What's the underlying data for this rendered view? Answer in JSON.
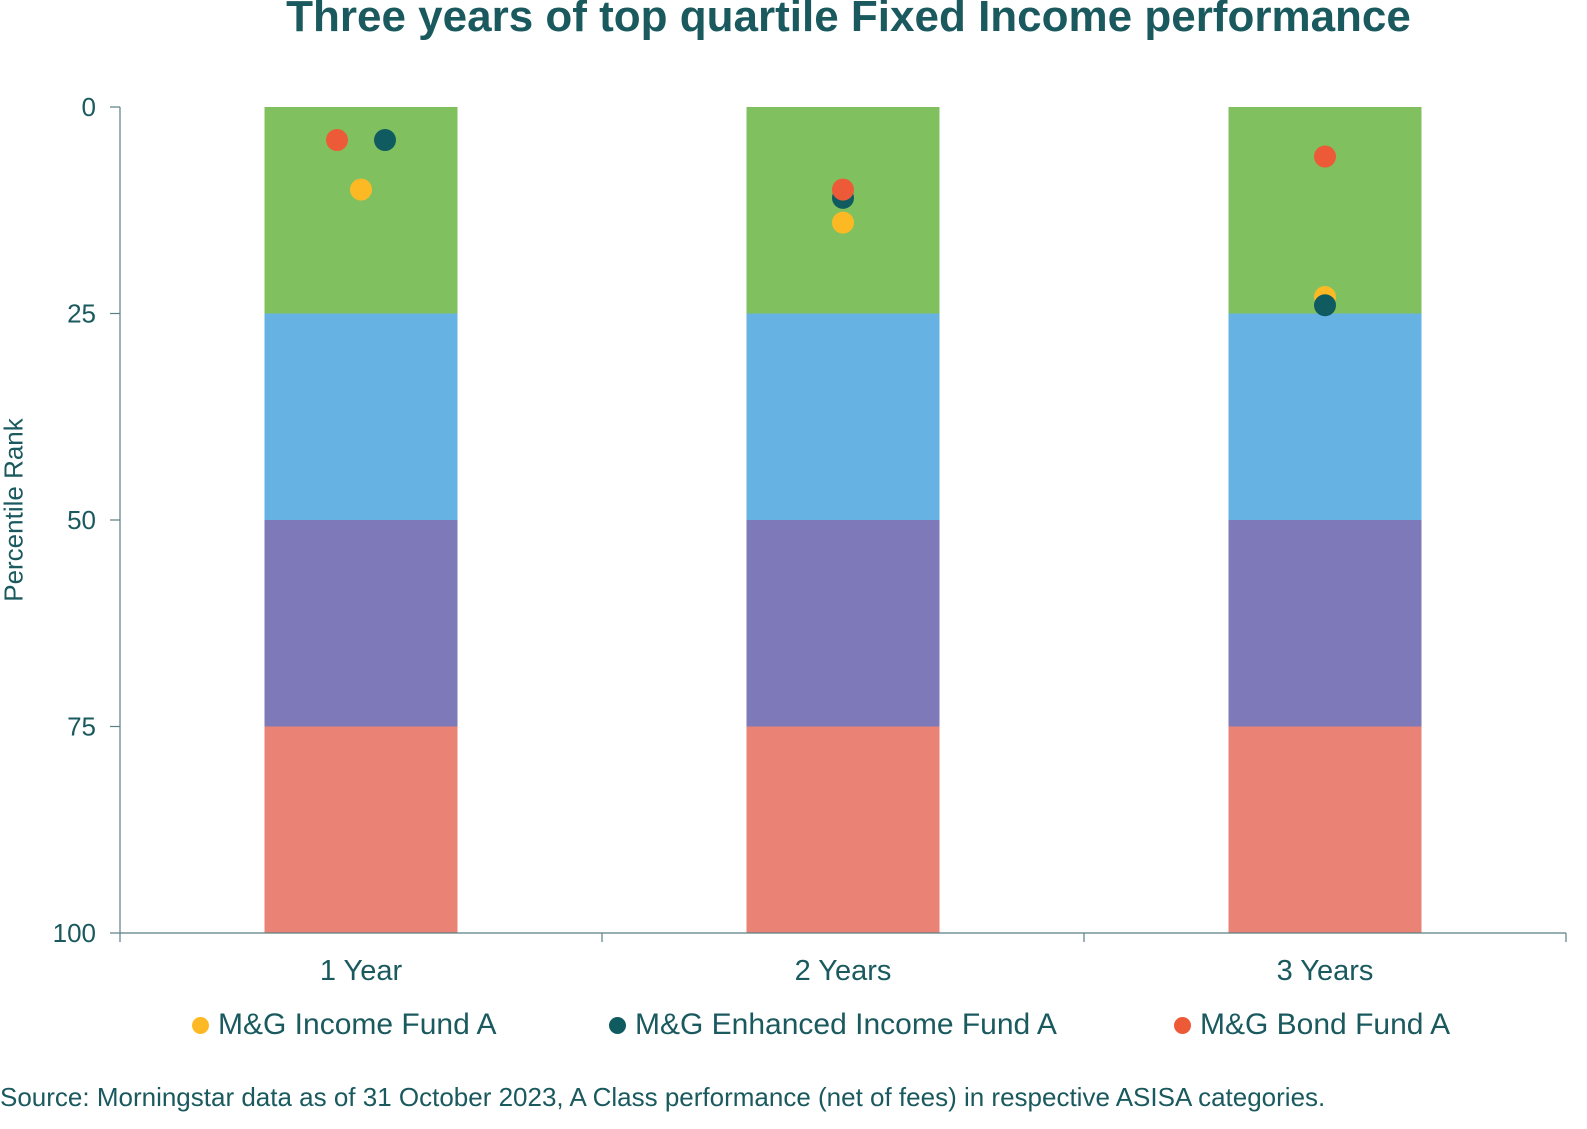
{
  "chart_data": {
    "type": "bar",
    "title": "Three years of top quartile Fixed Income performance",
    "ylabel": "Percentile Rank",
    "xlabel": "",
    "ylim": [
      0,
      100
    ],
    "y_inverted": true,
    "y_ticks": [
      "0",
      "25",
      "50",
      "75",
      "100"
    ],
    "categories": [
      "1 Year",
      "2 Years",
      "3 Years"
    ],
    "quartile_bands": [
      {
        "from": 0,
        "to": 25,
        "color": "#80c05f"
      },
      {
        "from": 25,
        "to": 50,
        "color": "#66b3e3"
      },
      {
        "from": 50,
        "to": 75,
        "color": "#7e79b8"
      },
      {
        "from": 75,
        "to": 100,
        "color": "#ea8276"
      }
    ],
    "series": [
      {
        "name": "M&G Income Fund A",
        "color": "#fdb924",
        "values": [
          10,
          14,
          23
        ]
      },
      {
        "name": "M&G Enhanced Income Fund A",
        "color": "#0f5b60",
        "values": [
          4,
          11,
          24
        ]
      },
      {
        "name": "M&G Bond Fund A",
        "color": "#ed5a37",
        "values": [
          4,
          10,
          6
        ]
      }
    ],
    "legend_position": "bottom",
    "grid": false
  },
  "source": "Source: Morningstar data as of 31 October 2023, A Class performance (net of fees) in respective ASISA categories.",
  "colors": {
    "text": "#1a5a5e",
    "axis": "#5b7f82"
  }
}
